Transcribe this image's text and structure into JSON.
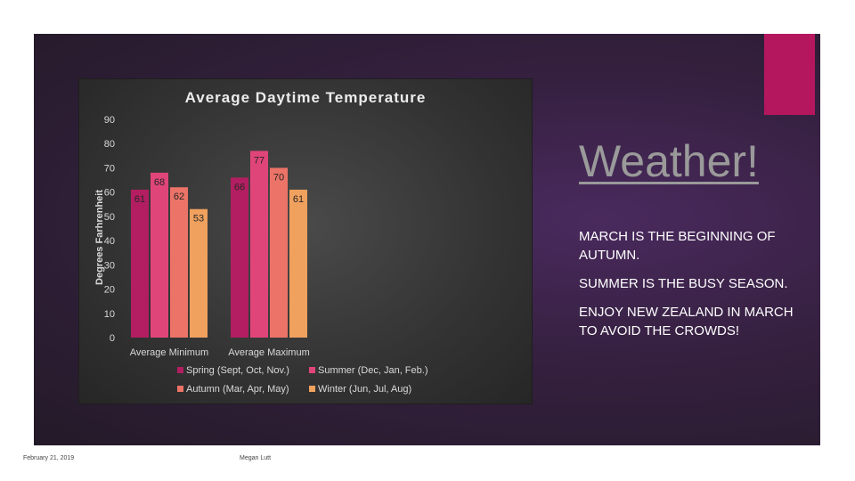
{
  "slide": {
    "heading": "Weather!",
    "bullets": [
      "March is the beginning of Autumn.",
      "Summer is the busy season.",
      "Enjoy New Zealand in March to avoid the crowds!"
    ],
    "footer_date": "February 21, 2019",
    "footer_name": "Megan Lutt",
    "colors": {
      "accent": "#b5175f",
      "background": "#35203f",
      "chart_background": "#3d3d3d"
    }
  },
  "chart_data": {
    "type": "bar",
    "title": "Average Daytime Temperature",
    "ylabel": "Degrees Farhrenheit",
    "xlabel": "",
    "ylim": [
      0,
      90
    ],
    "yticks": [
      0,
      10,
      20,
      30,
      40,
      50,
      60,
      70,
      80,
      90
    ],
    "grid": false,
    "legend_position": "bottom",
    "categories": [
      "Average Minimum",
      "Average Maximum"
    ],
    "series": [
      {
        "name": "Spring (Sept, Oct, Nov.)",
        "values": [
          61,
          66
        ],
        "color": "#b21e61"
      },
      {
        "name": "Summer (Dec, Jan, Feb.)",
        "values": [
          68,
          77
        ],
        "color": "#e0457a"
      },
      {
        "name": "Autumn (Mar, Apr, May)",
        "values": [
          62,
          70
        ],
        "color": "#ec7367"
      },
      {
        "name": "Winter (Jun, Jul, Aug)",
        "values": [
          53,
          61
        ],
        "color": "#f0a15e"
      }
    ]
  }
}
